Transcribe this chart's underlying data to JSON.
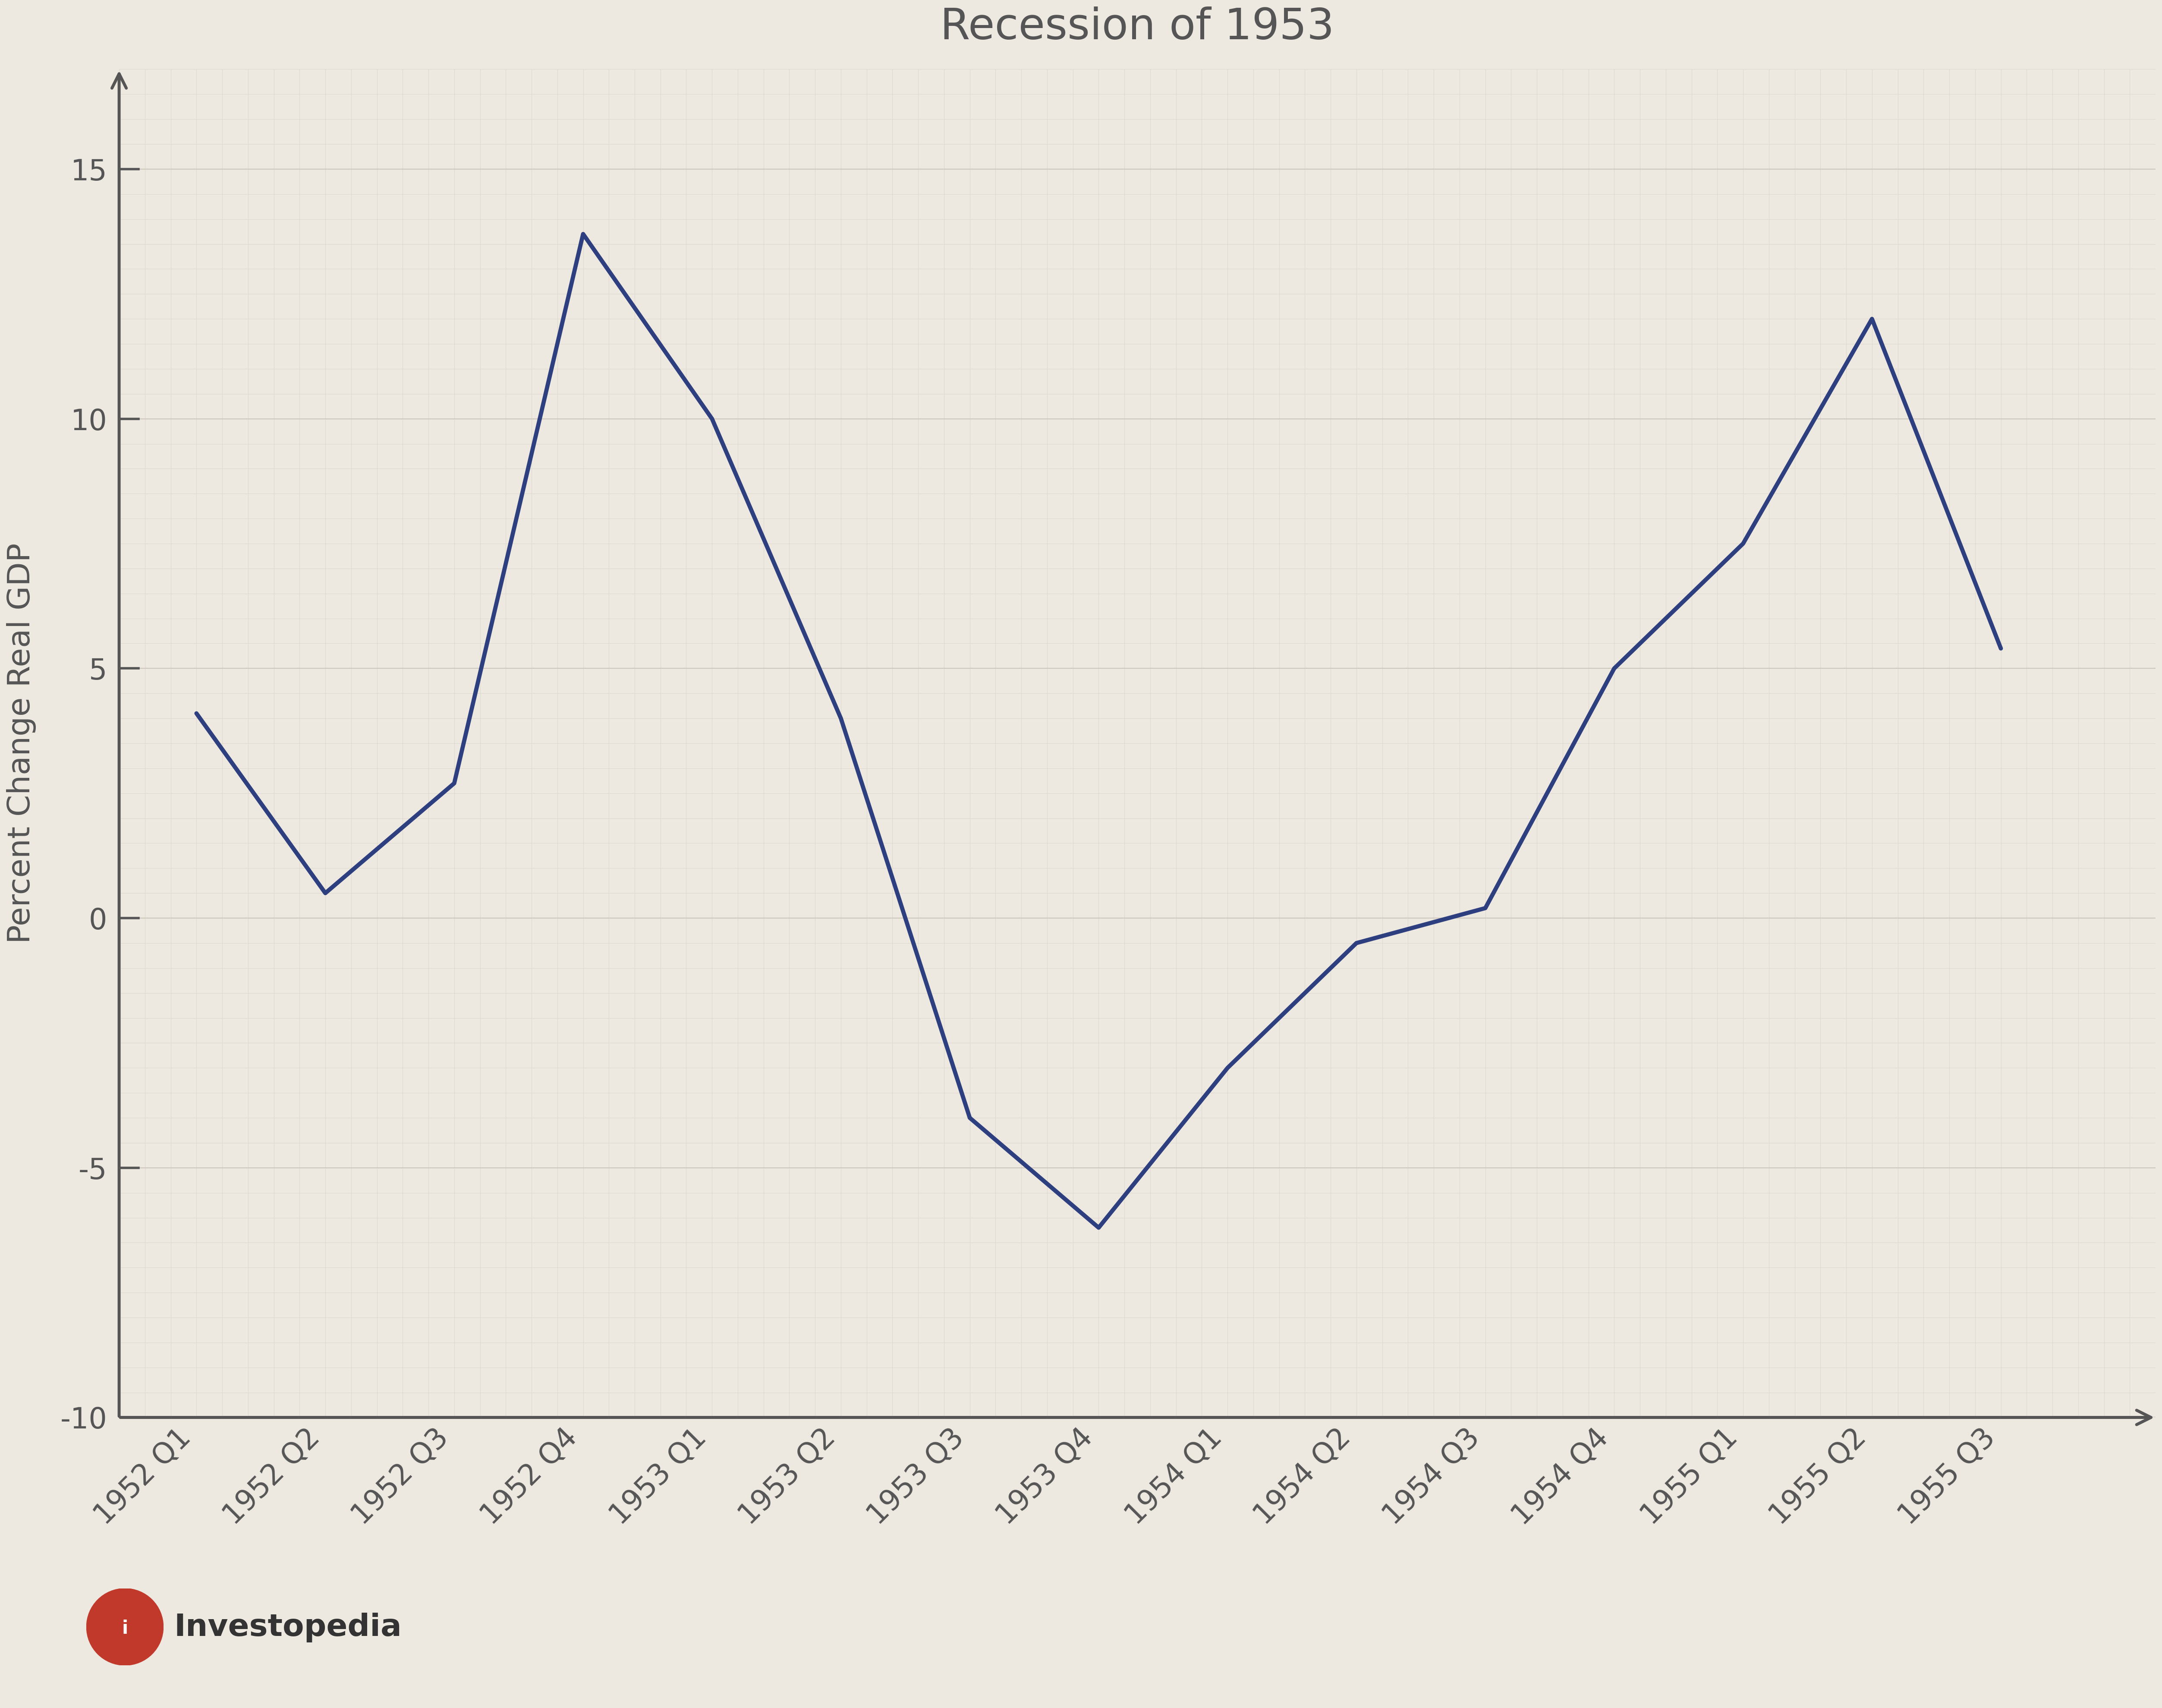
{
  "title": "Recession of 1953",
  "ylabel": "Percent Change Real GDP",
  "background_color": "#ede8e0",
  "grid_minor_color": "#ddd7ce",
  "grid_major_color": "#ccc5bb",
  "line_color": "#2e3f7f",
  "axis_color": "#555555",
  "text_color": "#555555",
  "categories": [
    "1952 Q1",
    "1952 Q2",
    "1952 Q3",
    "1952 Q4",
    "1953 Q1",
    "1953 Q2",
    "1953 Q3",
    "1953 Q4",
    "1954 Q1",
    "1954 Q2",
    "1954 Q3",
    "1954 Q4",
    "1955 Q1",
    "1955 Q2",
    "1955 Q3"
  ],
  "values": [
    4.1,
    0.5,
    2.7,
    13.7,
    10.0,
    4.0,
    -4.0,
    -6.2,
    -3.0,
    -0.5,
    0.2,
    5.0,
    7.5,
    12.0,
    5.4
  ],
  "ylim": [
    -10,
    17
  ],
  "xlim": [
    -0.6,
    15.2
  ],
  "yticks": [
    -10,
    -5,
    0,
    5,
    10,
    15
  ],
  "title_fontsize": 72,
  "label_fontsize": 52,
  "tick_fontsize": 48,
  "line_width": 7.0,
  "investopedia_fontsize": 52,
  "logo_color": "#c0392b"
}
